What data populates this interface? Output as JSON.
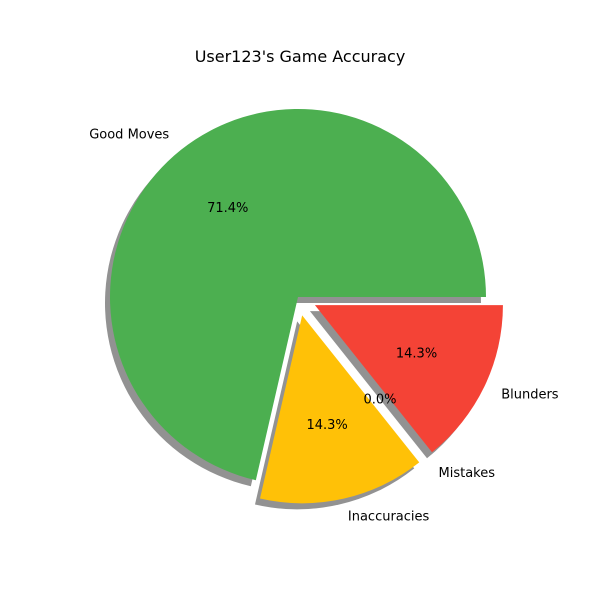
{
  "chart_data": {
    "type": "pie",
    "title": "User123's Game Accuracy",
    "start_angle_deg": 0,
    "direction": "counterclockwise",
    "shadow": true,
    "slices": [
      {
        "label": "Good Moves",
        "value": 71.4,
        "pct_label": "71.4%",
        "color": "#4caf50",
        "explode": 0
      },
      {
        "label": "Inaccuracies",
        "value": 14.3,
        "pct_label": "14.3%",
        "color": "#ffc107",
        "explode": 0.1
      },
      {
        "label": "Mistakes",
        "value": 0.0,
        "pct_label": "0.0%",
        "color": "#ff9800",
        "explode": 0.1
      },
      {
        "label": "Blunders",
        "value": 14.3,
        "pct_label": "14.3%",
        "color": "#f44336",
        "explode": 0.1
      }
    ]
  }
}
